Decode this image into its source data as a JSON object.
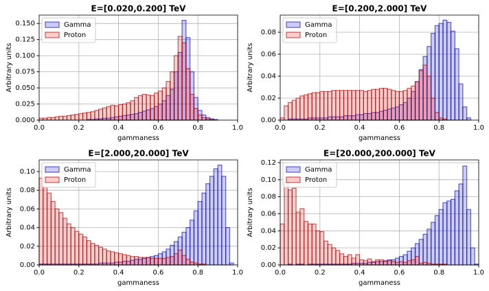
{
  "chart_data": [
    {
      "type": "histogram",
      "title": "E=[0.020,0.200] TeV",
      "xlabel": "gammaness",
      "ylabel": "Arbitrary units",
      "grid": true,
      "legend": "upper left",
      "bins": [
        0,
        0.02,
        0.04,
        0.06,
        0.08,
        0.1,
        0.12,
        0.14,
        0.16,
        0.18,
        0.2,
        0.22,
        0.24,
        0.26,
        0.28,
        0.3,
        0.32,
        0.34,
        0.36,
        0.38,
        0.4,
        0.42,
        0.44,
        0.46,
        0.48,
        0.5,
        0.52,
        0.54,
        0.56,
        0.58,
        0.6,
        0.62,
        0.64,
        0.66,
        0.68,
        0.7,
        0.72,
        0.74,
        0.76,
        0.78,
        0.8,
        0.82,
        0.84,
        0.86,
        0.88,
        0.9,
        0.92,
        0.94,
        0.96,
        0.98,
        1.0
      ],
      "xlim": [
        0,
        1
      ],
      "xticks": [
        {
          "value": 0,
          "label": "0.0"
        },
        {
          "value": 0.2,
          "label": "0.2"
        },
        {
          "value": 0.4,
          "label": "0.4"
        },
        {
          "value": 0.6,
          "label": "0.6"
        },
        {
          "value": 0.8,
          "label": "0.8"
        },
        {
          "value": 1,
          "label": "1.0"
        }
      ],
      "ylim": [
        0,
        0.163
      ],
      "yticks": [
        {
          "value": 0,
          "label": "0.000"
        },
        {
          "value": 0.025,
          "label": "0.025"
        },
        {
          "value": 0.05,
          "label": "0.050"
        },
        {
          "value": 0.075,
          "label": "0.075"
        },
        {
          "value": 0.1,
          "label": "0.100"
        },
        {
          "value": 0.125,
          "label": "0.125"
        },
        {
          "value": 0.15,
          "label": "0.150"
        }
      ],
      "series": [
        {
          "name": "Gamma",
          "color": "#0000ff",
          "edgecolor": "#00008b",
          "values": [
            0,
            0,
            0,
            0,
            0,
            0,
            0,
            0,
            0,
            0,
            0,
            0,
            0.001,
            0.001,
            0.002,
            0.002,
            0.003,
            0.003,
            0.004,
            0.005,
            0.006,
            0.007,
            0.008,
            0.009,
            0.01,
            0.012,
            0.014,
            0.016,
            0.018,
            0.021,
            0.025,
            0.03,
            0.038,
            0.048,
            0.075,
            0.105,
            0.155,
            0.128,
            0.075,
            0.035,
            0.015,
            0.008,
            0.004,
            0.002,
            0.001,
            0,
            0,
            0,
            0,
            0
          ]
        },
        {
          "name": "Proton",
          "color": "#ff0000",
          "edgecolor": "#8b0000",
          "values": [
            0.003,
            0.003,
            0.004,
            0.004,
            0.005,
            0.006,
            0.006,
            0.007,
            0.008,
            0.009,
            0.01,
            0.011,
            0.012,
            0.013,
            0.015,
            0.017,
            0.019,
            0.021,
            0.023,
            0.022,
            0.024,
            0.025,
            0.027,
            0.03,
            0.035,
            0.038,
            0.04,
            0.039,
            0.038,
            0.042,
            0.045,
            0.05,
            0.06,
            0.075,
            0.1,
            0.13,
            0.12,
            0.08,
            0.04,
            0.018,
            0.008,
            0.004,
            0.002,
            0.001,
            0,
            0,
            0,
            0,
            0,
            0
          ]
        }
      ]
    },
    {
      "type": "histogram",
      "title": "E=[0.200,2.000] TeV",
      "xlabel": "gammaness",
      "ylabel": "Arbitrary units",
      "grid": true,
      "legend": "upper left",
      "bins": [
        0,
        0.02,
        0.04,
        0.06,
        0.08,
        0.1,
        0.12,
        0.14,
        0.16,
        0.18,
        0.2,
        0.22,
        0.24,
        0.26,
        0.28,
        0.3,
        0.32,
        0.34,
        0.36,
        0.38,
        0.4,
        0.42,
        0.44,
        0.46,
        0.48,
        0.5,
        0.52,
        0.54,
        0.56,
        0.58,
        0.6,
        0.62,
        0.64,
        0.66,
        0.68,
        0.7,
        0.72,
        0.74,
        0.76,
        0.78,
        0.8,
        0.82,
        0.84,
        0.86,
        0.88,
        0.9,
        0.92,
        0.94,
        0.96,
        0.98,
        1.0
      ],
      "xlim": [
        0,
        1
      ],
      "xticks": [
        {
          "value": 0,
          "label": "0.0"
        },
        {
          "value": 0.2,
          "label": "0.2"
        },
        {
          "value": 0.4,
          "label": "0.4"
        },
        {
          "value": 0.6,
          "label": "0.6"
        },
        {
          "value": 0.8,
          "label": "0.8"
        },
        {
          "value": 1,
          "label": "1.0"
        }
      ],
      "ylim": [
        0,
        0.0956
      ],
      "yticks": [
        {
          "value": 0,
          "label": "0.00"
        },
        {
          "value": 0.02,
          "label": "0.02"
        },
        {
          "value": 0.04,
          "label": "0.04"
        },
        {
          "value": 0.06,
          "label": "0.06"
        },
        {
          "value": 0.08,
          "label": "0.08"
        }
      ],
      "series": [
        {
          "name": "Gamma",
          "color": "#0000ff",
          "edgecolor": "#00008b",
          "values": [
            0,
            0,
            0.001,
            0.001,
            0.001,
            0.001,
            0.001,
            0.002,
            0.002,
            0.002,
            0.002,
            0.002,
            0.003,
            0.003,
            0.003,
            0.003,
            0.004,
            0.004,
            0.004,
            0.005,
            0.005,
            0.006,
            0.006,
            0.007,
            0.007,
            0.008,
            0.009,
            0.01,
            0.011,
            0.012,
            0.014,
            0.016,
            0.02,
            0.026,
            0.035,
            0.046,
            0.058,
            0.067,
            0.079,
            0.086,
            0.088,
            0.091,
            0.089,
            0.081,
            0.065,
            0.033,
            0.012,
            0.002,
            0,
            0
          ]
        },
        {
          "name": "Proton",
          "color": "#ff0000",
          "edgecolor": "#8b0000",
          "values": [
            0.002,
            0.013,
            0.016,
            0.018,
            0.02,
            0.022,
            0.023,
            0.024,
            0.025,
            0.025,
            0.026,
            0.026,
            0.026,
            0.027,
            0.027,
            0.027,
            0.027,
            0.027,
            0.027,
            0.027,
            0.027,
            0.026,
            0.027,
            0.028,
            0.028,
            0.029,
            0.029,
            0.028,
            0.027,
            0.026,
            0.026,
            0.027,
            0.029,
            0.031,
            0.035,
            0.045,
            0.05,
            0.04,
            0.02,
            0.007,
            0.002,
            0.001,
            0,
            0,
            0,
            0,
            0,
            0,
            0,
            0
          ]
        }
      ]
    },
    {
      "type": "histogram",
      "title": "E=[2.000,20.000] TeV",
      "xlabel": "gammaness",
      "ylabel": "Arbitrary units",
      "grid": true,
      "legend": "upper left",
      "bins": [
        0,
        0.02,
        0.04,
        0.06,
        0.08,
        0.1,
        0.12,
        0.14,
        0.16,
        0.18,
        0.2,
        0.22,
        0.24,
        0.26,
        0.28,
        0.3,
        0.32,
        0.34,
        0.36,
        0.38,
        0.4,
        0.42,
        0.44,
        0.46,
        0.48,
        0.5,
        0.52,
        0.54,
        0.56,
        0.58,
        0.6,
        0.62,
        0.64,
        0.66,
        0.68,
        0.7,
        0.72,
        0.74,
        0.76,
        0.78,
        0.8,
        0.82,
        0.84,
        0.86,
        0.88,
        0.9,
        0.92,
        0.94,
        0.96,
        0.98,
        1.0
      ],
      "xlim": [
        0,
        1
      ],
      "xticks": [
        {
          "value": 0,
          "label": "0.0"
        },
        {
          "value": 0.2,
          "label": "0.2"
        },
        {
          "value": 0.4,
          "label": "0.4"
        },
        {
          "value": 0.6,
          "label": "0.6"
        },
        {
          "value": 0.8,
          "label": "0.8"
        },
        {
          "value": 1,
          "label": "1.0"
        }
      ],
      "ylim": [
        0,
        0.1125
      ],
      "yticks": [
        {
          "value": 0,
          "label": "0.00"
        },
        {
          "value": 0.02,
          "label": "0.02"
        },
        {
          "value": 0.04,
          "label": "0.04"
        },
        {
          "value": 0.06,
          "label": "0.06"
        },
        {
          "value": 0.08,
          "label": "0.08"
        },
        {
          "value": 0.1,
          "label": "0.10"
        }
      ],
      "series": [
        {
          "name": "Gamma",
          "color": "#0000ff",
          "edgecolor": "#00008b",
          "values": [
            0.001,
            0.001,
            0.001,
            0.001,
            0.001,
            0.001,
            0.001,
            0.001,
            0.001,
            0.001,
            0.001,
            0.001,
            0.001,
            0.001,
            0.001,
            0.002,
            0.002,
            0.002,
            0.002,
            0.003,
            0.003,
            0.004,
            0.004,
            0.005,
            0.006,
            0.006,
            0.007,
            0.008,
            0.009,
            0.01,
            0.012,
            0.014,
            0.017,
            0.021,
            0.025,
            0.03,
            0.035,
            0.04,
            0.048,
            0.058,
            0.068,
            0.077,
            0.087,
            0.095,
            0.103,
            0.107,
            0.095,
            0.04,
            0.002,
            0
          ]
        },
        {
          "name": "Proton",
          "color": "#ff0000",
          "edgecolor": "#8b0000",
          "values": [
            0.093,
            0.083,
            0.077,
            0.068,
            0.06,
            0.056,
            0.05,
            0.044,
            0.04,
            0.036,
            0.033,
            0.03,
            0.026,
            0.023,
            0.021,
            0.019,
            0.017,
            0.015,
            0.014,
            0.013,
            0.012,
            0.011,
            0.01,
            0.009,
            0.009,
            0.008,
            0.008,
            0.008,
            0.007,
            0.007,
            0.007,
            0.007,
            0.008,
            0.009,
            0.012,
            0.016,
            0.01,
            0.006,
            0.003,
            0.002,
            0.001,
            0.001,
            0,
            0,
            0,
            0,
            0,
            0,
            0,
            0
          ]
        }
      ]
    },
    {
      "type": "histogram",
      "title": "E=[20.000,200.000] TeV",
      "xlabel": "gammaness",
      "ylabel": "Arbitrary units",
      "grid": true,
      "legend": "upper left",
      "bins": [
        0,
        0.02,
        0.04,
        0.06,
        0.08,
        0.1,
        0.12,
        0.14,
        0.16,
        0.18,
        0.2,
        0.22,
        0.24,
        0.26,
        0.28,
        0.3,
        0.32,
        0.34,
        0.36,
        0.38,
        0.4,
        0.42,
        0.44,
        0.46,
        0.48,
        0.5,
        0.52,
        0.54,
        0.56,
        0.58,
        0.6,
        0.62,
        0.64,
        0.66,
        0.68,
        0.7,
        0.72,
        0.74,
        0.76,
        0.78,
        0.8,
        0.82,
        0.84,
        0.86,
        0.88,
        0.9,
        0.92,
        0.94,
        0.96,
        0.98,
        1.0
      ],
      "xlim": [
        0,
        1
      ],
      "xticks": [
        {
          "value": 0,
          "label": "0.0"
        },
        {
          "value": 0.2,
          "label": "0.2"
        },
        {
          "value": 0.4,
          "label": "0.4"
        },
        {
          "value": 0.6,
          "label": "0.6"
        },
        {
          "value": 0.8,
          "label": "0.8"
        },
        {
          "value": 1,
          "label": "1.0"
        }
      ],
      "ylim": [
        0,
        0.1232
      ],
      "yticks": [
        {
          "value": 0,
          "label": "0.00"
        },
        {
          "value": 0.02,
          "label": "0.02"
        },
        {
          "value": 0.04,
          "label": "0.04"
        },
        {
          "value": 0.06,
          "label": "0.06"
        },
        {
          "value": 0.08,
          "label": "0.08"
        },
        {
          "value": 0.1,
          "label": "0.10"
        },
        {
          "value": 0.12,
          "label": "0.12"
        }
      ],
      "series": [
        {
          "name": "Gamma",
          "color": "#0000ff",
          "edgecolor": "#00008b",
          "values": [
            0,
            0,
            0.001,
            0,
            0.001,
            0.001,
            0,
            0.001,
            0.001,
            0.001,
            0.001,
            0.001,
            0.001,
            0.001,
            0.001,
            0.001,
            0.001,
            0.001,
            0.002,
            0.002,
            0.002,
            0.002,
            0.003,
            0.003,
            0.004,
            0.004,
            0.005,
            0.006,
            0.006,
            0.008,
            0.01,
            0.012,
            0.016,
            0.02,
            0.025,
            0.03,
            0.036,
            0.042,
            0.05,
            0.058,
            0.065,
            0.073,
            0.075,
            0.077,
            0.087,
            0.095,
            0.116,
            0.065,
            0.02,
            0.001
          ]
        },
        {
          "name": "Proton",
          "color": "#ff0000",
          "edgecolor": "#8b0000",
          "values": [
            0.048,
            0.097,
            0.088,
            0.09,
            0.062,
            0.066,
            0.051,
            0.048,
            0.048,
            0.04,
            0.039,
            0.028,
            0.024,
            0.02,
            0.017,
            0.013,
            0.01,
            0.012,
            0.008,
            0.012,
            0.006,
            0.005,
            0.007,
            0.004,
            0.006,
            0.006,
            0.004,
            0.005,
            0.004,
            0.003,
            0.004,
            0.003,
            0.005,
            0.006,
            0.01,
            0.002,
            0.003,
            0.002,
            0.001,
            0.001,
            0.001,
            0.001,
            0,
            0,
            0,
            0,
            0,
            0,
            0,
            0
          ]
        }
      ]
    }
  ]
}
